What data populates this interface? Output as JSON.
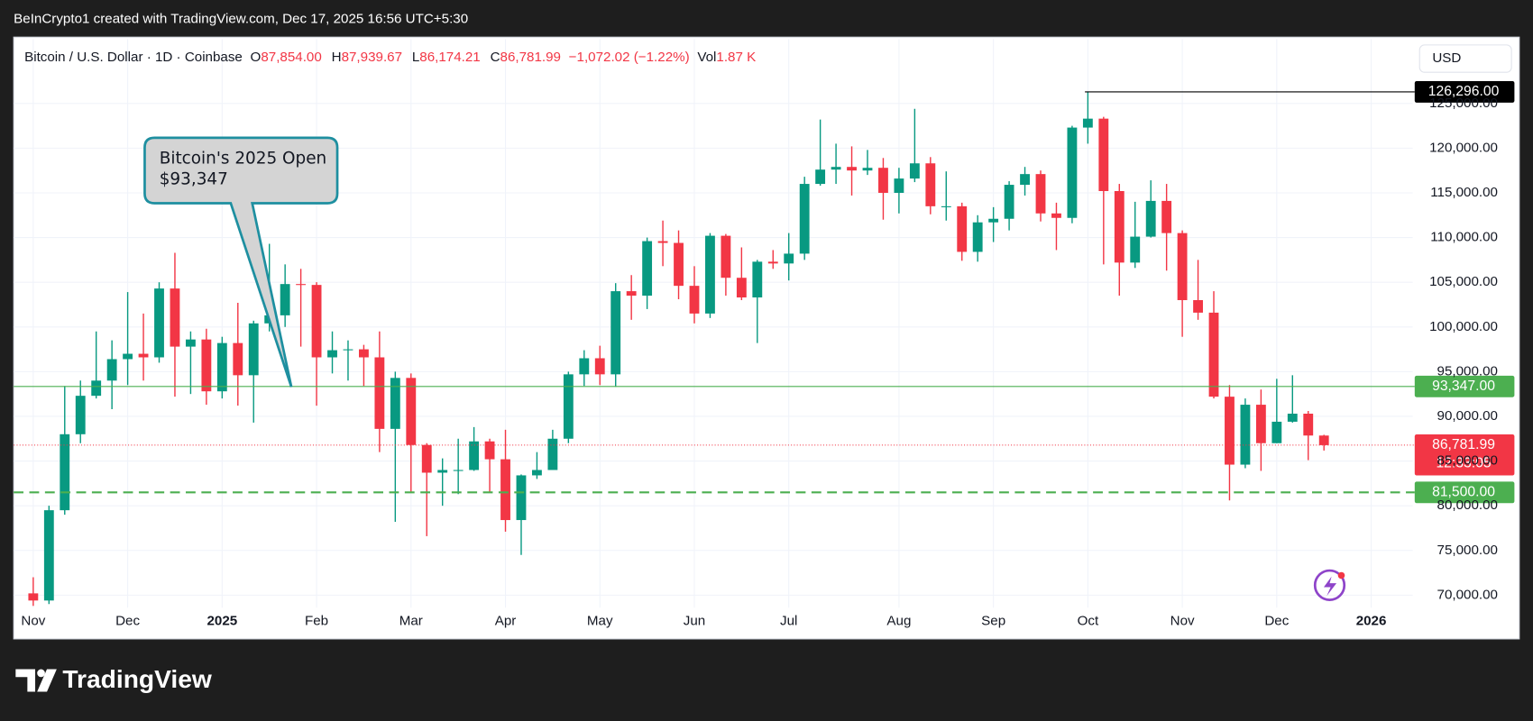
{
  "header": {
    "attribution": "BeInCrypto1 created with TradingView.com, Dec 17, 2025 16:56 UTC+5:30",
    "footer": "TradingView"
  },
  "chart_data": {
    "type": "candlestick",
    "symbol": "Bitcoin / U.S. Dollar · 1D · Coinbase",
    "quote": [
      {
        "key": "O",
        "value": "87,854.00"
      },
      {
        "key": "H",
        "value": "87,939.67"
      },
      {
        "key": "L",
        "value": "86,174.21"
      },
      {
        "key": "C",
        "value": "86,781.99"
      }
    ],
    "change": "−1,072.02 (−1.22%)",
    "volume": {
      "key": "Vol",
      "value": "1.87 K"
    },
    "currency": "USD",
    "up_color": "#089981",
    "down_color": "#f23645",
    "categories": [
      "Nov",
      null,
      null,
      null,
      null,
      null,
      "Dec",
      null,
      null,
      null,
      null,
      null,
      "2025",
      null,
      null,
      null,
      null,
      null,
      "Feb",
      null,
      null,
      null,
      null,
      null,
      "Mar",
      null,
      null,
      null,
      null,
      null,
      "Apr",
      null,
      null,
      null,
      null,
      null,
      "May",
      null,
      null,
      null,
      null,
      null,
      "Jun",
      null,
      null,
      null,
      null,
      null,
      "Jul",
      null,
      null,
      null,
      null,
      null,
      null,
      "Aug",
      null,
      null,
      null,
      null,
      null,
      "Sep",
      null,
      null,
      null,
      null,
      null,
      "Oct",
      null,
      null,
      null,
      null,
      null,
      "Nov",
      null,
      null,
      null,
      null,
      null,
      "Dec",
      null,
      null,
      null,
      null,
      null,
      "2026",
      null,
      null
    ],
    "open": [
      70200,
      69400,
      79500,
      88000,
      92300,
      94000,
      96400,
      97000,
      96600,
      104300,
      97800,
      98600,
      92800,
      98200,
      94600,
      100400,
      101300,
      104800,
      104700,
      96600,
      97400,
      97500,
      96600,
      88600,
      94300,
      86800,
      83700,
      84000,
      84000,
      87200,
      85200,
      78400,
      83400,
      84000,
      87500,
      94700,
      96500,
      94700,
      104000,
      103500,
      109600,
      109400,
      104600,
      101500,
      110200,
      105500,
      103300,
      107300,
      107100,
      108200,
      116000,
      117600,
      117900,
      117500,
      117800,
      115000,
      116600,
      118300,
      113500,
      113500,
      108400,
      111700,
      112100,
      115900,
      117100,
      112700,
      112200,
      122300,
      123300,
      115200,
      107200,
      110100,
      114100,
      110500,
      103000,
      101600,
      92200,
      84600,
      91300,
      87000,
      89400,
      90300,
      87854,
      null,
      null,
      null,
      null,
      null
    ],
    "high": [
      72000,
      80000,
      93400,
      94000,
      99500,
      98500,
      103900,
      101500,
      105000,
      108300,
      99500,
      99800,
      98900,
      102700,
      100700,
      109300,
      107000,
      106500,
      105000,
      99500,
      98500,
      98000,
      99500,
      95000,
      94800,
      87000,
      85300,
      87500,
      88800,
      87500,
      88500,
      83500,
      86000,
      88500,
      95000,
      97400,
      97900,
      104900,
      105800,
      110000,
      111900,
      110800,
      106800,
      110500,
      110400,
      108900,
      107500,
      108600,
      110500,
      116800,
      123200,
      120500,
      120200,
      119800,
      118900,
      117800,
      124400,
      119000,
      117400,
      113900,
      112500,
      113400,
      116300,
      117900,
      117500,
      113900,
      122500,
      126296,
      123500,
      116000,
      114000,
      116400,
      116000,
      110800,
      107500,
      104000,
      93500,
      92000,
      93000,
      94200,
      94600,
      90600,
      87939.67,
      null,
      null,
      null,
      null,
      null
    ],
    "low": [
      68800,
      69000,
      79000,
      87000,
      92000,
      90800,
      93500,
      94000,
      96000,
      92200,
      92500,
      91300,
      92000,
      91200,
      89300,
      99500,
      100000,
      97800,
      91200,
      94800,
      94000,
      93400,
      86000,
      78200,
      81500,
      76600,
      80000,
      81300,
      83900,
      81500,
      77100,
      74500,
      83000,
      84000,
      87000,
      93400,
      93500,
      93300,
      100800,
      102000,
      106800,
      103100,
      100400,
      101000,
      103500,
      103000,
      98200,
      106500,
      105200,
      107500,
      115800,
      116000,
      114700,
      117000,
      112000,
      112700,
      116200,
      112600,
      111900,
      107400,
      107300,
      109500,
      110800,
      114700,
      111800,
      108600,
      111600,
      120500,
      107000,
      103500,
      106600,
      110000,
      106300,
      98900,
      100800,
      92000,
      80600,
      84200,
      83900,
      87000,
      89300,
      85100,
      86174.21,
      null,
      null,
      null,
      null,
      null
    ],
    "close": [
      69400,
      79500,
      88000,
      92300,
      94000,
      96400,
      97000,
      96600,
      104300,
      97800,
      98600,
      92800,
      98200,
      94600,
      100400,
      101300,
      104800,
      104700,
      96600,
      97400,
      97500,
      96600,
      88600,
      94300,
      86800,
      83700,
      84000,
      84000,
      87200,
      85200,
      78400,
      83400,
      84000,
      87500,
      94700,
      96500,
      94700,
      104000,
      103500,
      109600,
      109400,
      104600,
      101500,
      110200,
      105500,
      103300,
      107300,
      107100,
      108200,
      116000,
      117600,
      117900,
      117500,
      117800,
      115000,
      116600,
      118300,
      113500,
      113500,
      108400,
      111700,
      112100,
      115900,
      117100,
      112700,
      112200,
      122300,
      123300,
      115200,
      107200,
      110100,
      114100,
      110500,
      103000,
      101600,
      92200,
      84600,
      91300,
      87000,
      89400,
      90300,
      87854,
      86781.99,
      null,
      null,
      null,
      null,
      null
    ],
    "ylim": [
      68600,
      132200
    ],
    "yticks": [
      {
        "value": 70000,
        "label": "70,000.00"
      },
      {
        "value": 75000,
        "label": "75,000.00"
      },
      {
        "value": 80000,
        "label": "80,000.00"
      },
      {
        "value": 85000,
        "label": "85,000.00"
      },
      {
        "value": 90000,
        "label": "90,000.00"
      },
      {
        "value": 95000,
        "label": "95,000.00"
      },
      {
        "value": 100000,
        "label": "100,000.00"
      },
      {
        "value": 105000,
        "label": "105,000.00"
      },
      {
        "value": 110000,
        "label": "110,000.00"
      },
      {
        "value": 115000,
        "label": "115,000.00"
      },
      {
        "value": 120000,
        "label": "120,000.00"
      },
      {
        "value": 125000,
        "label": "125,000.00"
      }
    ],
    "grid": true,
    "price_lines": [
      {
        "value": 126296,
        "label": "126,296.00",
        "color": "#000000",
        "line": "ray"
      },
      {
        "value": 93347,
        "label": "93,347.00",
        "color": "#4caf50",
        "line": "solid"
      },
      {
        "value": 86781.99,
        "label": "86,781.99",
        "sublabel": "12:33:05",
        "color": "#f23645",
        "line": "dotted"
      },
      {
        "value": 81500,
        "label": "81,500.00",
        "color": "#4caf50",
        "line": "dashed"
      }
    ],
    "annotations": [
      {
        "text": [
          "Bitcoin's 2025 Open",
          "$93,347"
        ]
      }
    ]
  }
}
